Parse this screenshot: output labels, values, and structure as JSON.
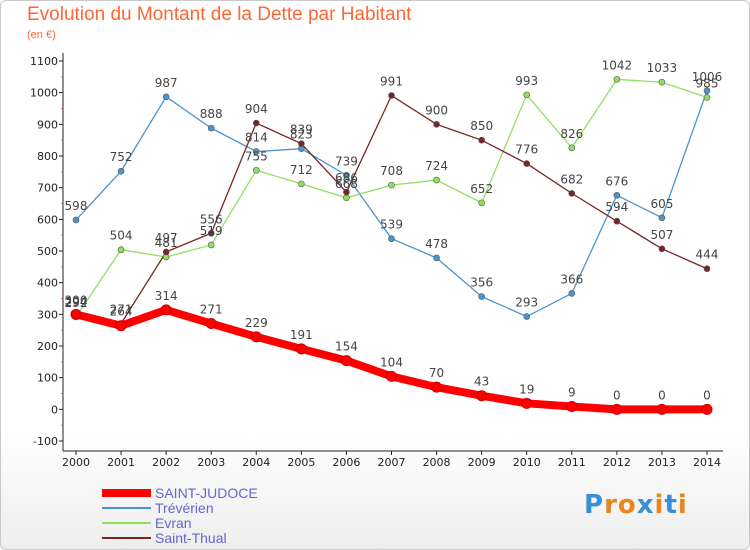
{
  "title": "Evolution du Montant de la Dette par Habitant",
  "unit": "(en €)",
  "brand": {
    "text": "Proxiti",
    "letter_colors": [
      "#3a8ed6",
      "#e8861b",
      "#e8861b",
      "#3a8ed6",
      "#e8861b",
      "#3a8ed6",
      "#e8861b"
    ]
  },
  "chart_data": {
    "type": "line",
    "x": [
      "2000",
      "2001",
      "2002",
      "2003",
      "2004",
      "2005",
      "2006",
      "2007",
      "2008",
      "2009",
      "2010",
      "2011",
      "2012",
      "2013",
      "2014"
    ],
    "ylim": [
      -100,
      1100
    ],
    "yticks": [
      "-100",
      "0",
      "100",
      "200",
      "300",
      "400",
      "500",
      "600",
      "700",
      "800",
      "900",
      "1000",
      "1100"
    ],
    "grid": false,
    "legend_position": "bottom-left",
    "series": [
      {
        "name": "SAINT-JUDOCE",
        "color": "#ff0000",
        "values": [
          300,
          264,
          314,
          271,
          229,
          191,
          154,
          104,
          70,
          43,
          19,
          9,
          0,
          0,
          0
        ],
        "labels": [
          "300",
          "264",
          "314",
          "271",
          "229",
          "191",
          "154",
          "104",
          "70",
          "43",
          "19",
          "9",
          "0",
          "0",
          "0"
        ]
      },
      {
        "name": "Trévérien",
        "color": "#4a94d0",
        "values": [
          598,
          752,
          987,
          888,
          814,
          823,
          739,
          539,
          478,
          356,
          293,
          366,
          676,
          605,
          1006
        ],
        "labels": [
          "598",
          "752",
          "987",
          "888",
          "814",
          "823",
          "739",
          "539",
          "478",
          "356",
          "293",
          "366",
          "676",
          "605",
          "1006"
        ]
      },
      {
        "name": "Evran",
        "color": "#90e060",
        "values": [
          292,
          504,
          481,
          519,
          755,
          712,
          668,
          708,
          724,
          652,
          993,
          826,
          1042,
          1033,
          985
        ],
        "labels": [
          "292",
          "504",
          "481",
          "519",
          "755",
          "712",
          "668",
          "708",
          "724",
          "652",
          "993",
          "826",
          "1042",
          "1033",
          "985"
        ]
      },
      {
        "name": "Saint-Thual",
        "color": "#7a2424",
        "values": [
          294,
          271,
          497,
          556,
          904,
          839,
          686,
          991,
          900,
          850,
          776,
          682,
          594,
          507,
          444
        ],
        "labels": [
          "294",
          "271",
          "497",
          "556",
          "904",
          "839",
          "686",
          "991",
          "900",
          "850",
          "776",
          "682",
          "594",
          "507",
          "444"
        ]
      }
    ]
  }
}
